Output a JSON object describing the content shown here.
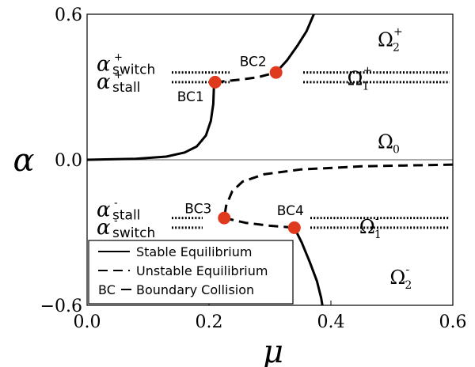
{
  "chart_data": {
    "type": "line",
    "title": "",
    "xlabel": "μ",
    "ylabel": "α",
    "xlim": [
      0.0,
      0.6
    ],
    "ylim": [
      -0.6,
      0.6
    ],
    "xticks": [
      "0.0",
      "0.2",
      "0.4",
      "0.6"
    ],
    "yticks": [
      "−0.6",
      "0.0",
      "0.6"
    ],
    "colors": {
      "curve": "#000000",
      "points": "#e03a1e",
      "axis_line": "#555555"
    },
    "legend": {
      "position": "lower-left",
      "entries": [
        {
          "style": "solid",
          "label": "Stable Equilibrium"
        },
        {
          "style": "dashed",
          "label": "Unstable Equilibrium"
        },
        {
          "style": "text",
          "symbol": "BC",
          "label": "Boundary Collision"
        }
      ]
    },
    "series": [
      {
        "style": "solid",
        "points": [
          [
            0.0,
            0.0
          ],
          [
            0.08,
            0.004
          ],
          [
            0.13,
            0.013
          ],
          [
            0.16,
            0.03
          ],
          [
            0.18,
            0.055
          ],
          [
            0.195,
            0.1
          ],
          [
            0.203,
            0.16
          ],
          [
            0.207,
            0.23
          ],
          [
            0.208,
            0.3
          ],
          [
            0.21,
            0.32
          ]
        ]
      },
      {
        "style": "dashed",
        "points": [
          [
            0.21,
            0.32
          ],
          [
            0.25,
            0.33
          ],
          [
            0.28,
            0.34
          ],
          [
            0.31,
            0.36
          ]
        ]
      },
      {
        "style": "solid",
        "points": [
          [
            0.31,
            0.36
          ],
          [
            0.328,
            0.41
          ],
          [
            0.345,
            0.47
          ],
          [
            0.36,
            0.53
          ],
          [
            0.372,
            0.6
          ]
        ]
      },
      {
        "style": "dashed",
        "points": [
          [
            0.6,
            -0.02
          ],
          [
            0.45,
            -0.027
          ],
          [
            0.35,
            -0.04
          ],
          [
            0.29,
            -0.06
          ],
          [
            0.255,
            -0.09
          ],
          [
            0.238,
            -0.13
          ],
          [
            0.228,
            -0.19
          ],
          [
            0.225,
            -0.24
          ]
        ]
      },
      {
        "style": "dashed",
        "points": [
          [
            0.225,
            -0.24
          ],
          [
            0.26,
            -0.26
          ],
          [
            0.3,
            -0.272
          ],
          [
            0.34,
            -0.28
          ]
        ]
      },
      {
        "style": "solid",
        "points": [
          [
            0.34,
            -0.28
          ],
          [
            0.352,
            -0.34
          ],
          [
            0.365,
            -0.42
          ],
          [
            0.377,
            -0.5
          ],
          [
            0.384,
            -0.57
          ],
          [
            0.386,
            -0.6
          ]
        ]
      }
    ],
    "boundary_collisions": [
      {
        "label": "BC1",
        "mu": 0.21,
        "alpha": 0.32
      },
      {
        "label": "BC2",
        "mu": 0.31,
        "alpha": 0.36
      },
      {
        "label": "BC3",
        "mu": 0.225,
        "alpha": -0.24
      },
      {
        "label": "BC4",
        "mu": 0.34,
        "alpha": -0.28
      }
    ],
    "reference_lines": [
      {
        "main": "α",
        "sub": "switch",
        "sup": "+",
        "alpha": 0.36
      },
      {
        "main": "α",
        "sub": "stall",
        "sup": "+",
        "alpha": 0.32
      },
      {
        "main": "α",
        "sub": "stall",
        "sup": "-",
        "alpha": -0.24
      },
      {
        "main": "α",
        "sub": "switch",
        "sup": "-",
        "alpha": -0.28
      }
    ],
    "regions": [
      {
        "main": "Ω",
        "sub": "2",
        "sup": "+",
        "mu": 0.5,
        "alpha": 0.5
      },
      {
        "main": "Ω",
        "sub": "1",
        "sup": "+",
        "mu": 0.45,
        "alpha": 0.34
      },
      {
        "main": "Ω",
        "sub": "0",
        "sup": "",
        "mu": 0.5,
        "alpha": 0.08
      },
      {
        "main": "Ω",
        "sub": "1",
        "sup": "-",
        "mu": 0.47,
        "alpha": -0.27
      },
      {
        "main": "Ω",
        "sub": "2",
        "sup": "-",
        "mu": 0.52,
        "alpha": -0.48
      }
    ]
  }
}
